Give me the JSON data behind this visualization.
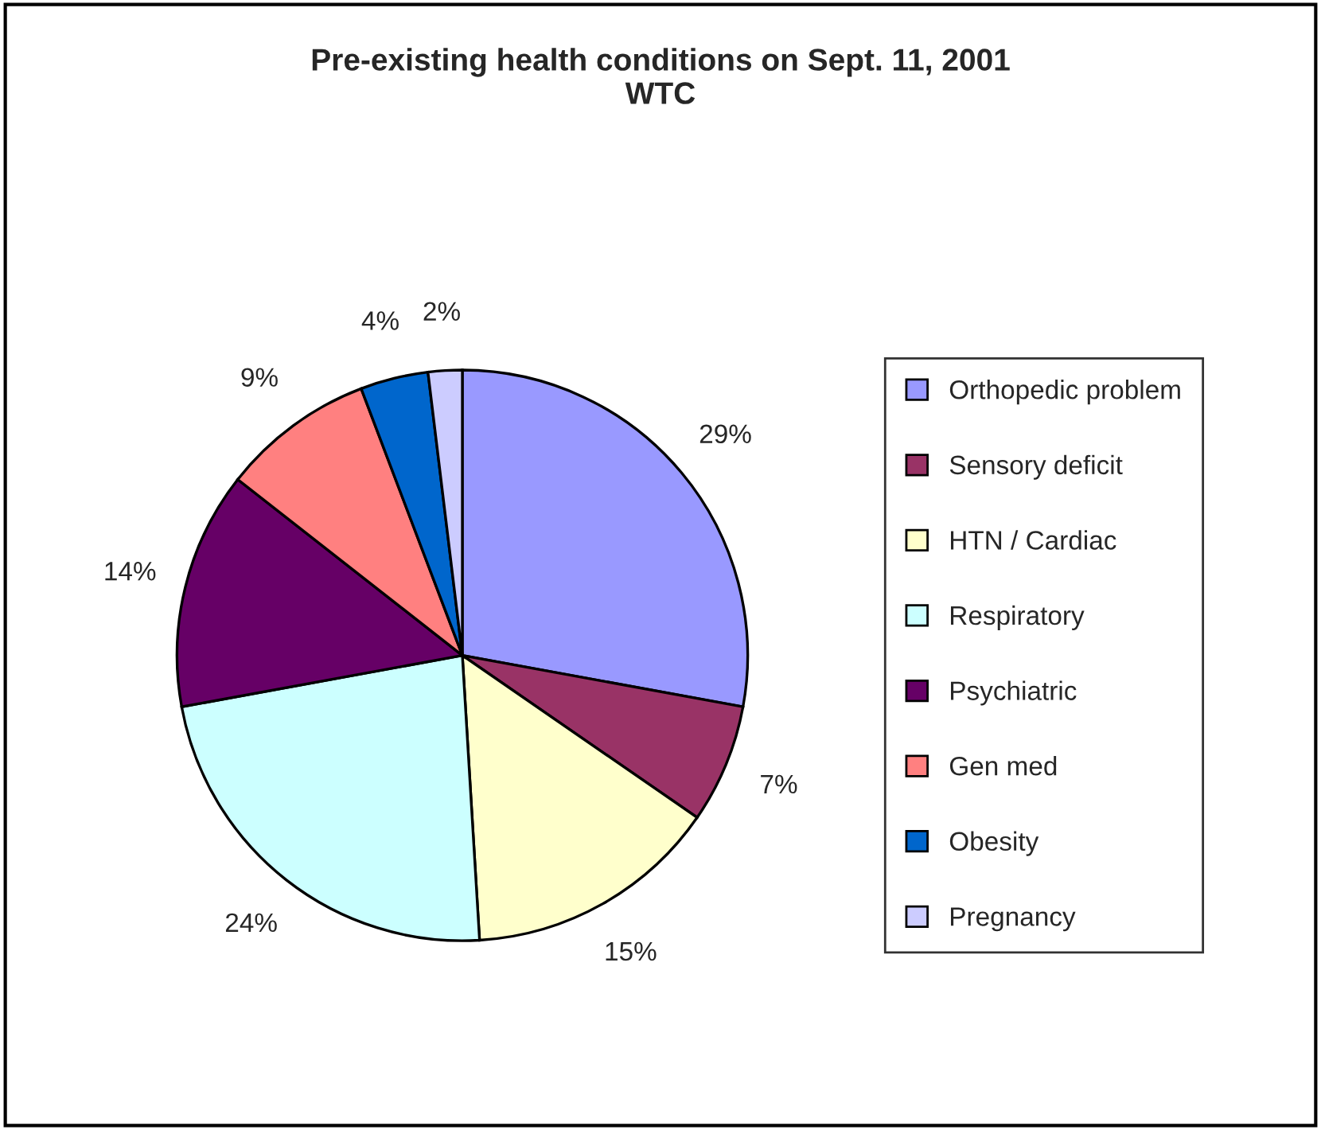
{
  "chart_data": {
    "type": "pie",
    "title": "Pre-existing health conditions on Sept. 11, 2001\nWTC",
    "categories": [
      "Orthopedic problem",
      "Sensory deficit",
      "HTN / Cardiac",
      "Respiratory",
      "Psychiatric",
      "Gen med",
      "Obesity",
      "Pregnancy"
    ],
    "values": [
      29,
      7,
      15,
      24,
      14,
      9,
      4,
      2
    ],
    "value_labels": [
      "29%",
      "7%",
      "15%",
      "24%",
      "14%",
      "9%",
      "4%",
      "2%"
    ],
    "colors": [
      "#9999ff",
      "#993366",
      "#ffffcc",
      "#ccffff",
      "#660066",
      "#ff8080",
      "#0066cc",
      "#ccccff"
    ],
    "legend": "right"
  }
}
